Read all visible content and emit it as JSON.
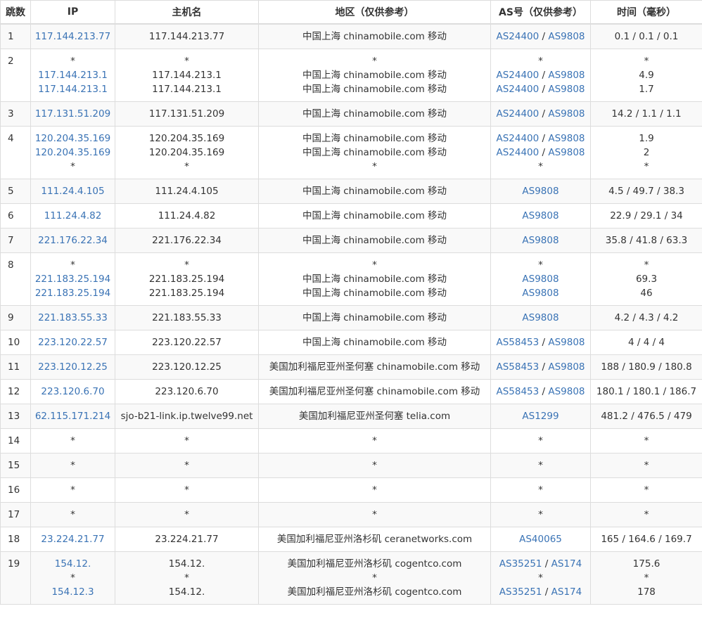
{
  "headers": [
    "跳数",
    "IP",
    "主机名",
    "地区（仅供参考）",
    "AS号（仅供参考）",
    "时间（毫秒）"
  ],
  "rows": [
    {
      "hop": "1",
      "ip": [
        "117.144.213.77"
      ],
      "host": [
        "117.144.213.77"
      ],
      "region": [
        "中国上海 chinamobile.com 移动"
      ],
      "as": [
        "AS24400 / AS9808"
      ],
      "time": [
        "0.1 / 0.1 / 0.1"
      ]
    },
    {
      "hop": "2",
      "ip": [
        "*",
        "117.144.213.1",
        "117.144.213.1"
      ],
      "host": [
        "*",
        "117.144.213.1",
        "117.144.213.1"
      ],
      "region": [
        "*",
        "中国上海 chinamobile.com 移动",
        "中国上海 chinamobile.com 移动"
      ],
      "as": [
        "*",
        "AS24400 / AS9808",
        "AS24400 / AS9808"
      ],
      "time": [
        "*",
        "4.9",
        "1.7"
      ]
    },
    {
      "hop": "3",
      "ip": [
        "117.131.51.209"
      ],
      "host": [
        "117.131.51.209"
      ],
      "region": [
        "中国上海 chinamobile.com 移动"
      ],
      "as": [
        "AS24400 / AS9808"
      ],
      "time": [
        "14.2 / 1.1 / 1.1"
      ]
    },
    {
      "hop": "4",
      "ip": [
        "120.204.35.169",
        "120.204.35.169",
        "*"
      ],
      "host": [
        "120.204.35.169",
        "120.204.35.169",
        "*"
      ],
      "region": [
        "中国上海 chinamobile.com 移动",
        "中国上海 chinamobile.com 移动",
        "*"
      ],
      "as": [
        "AS24400 / AS9808",
        "AS24400 / AS9808",
        "*"
      ],
      "time": [
        "1.9",
        "2",
        "*"
      ]
    },
    {
      "hop": "5",
      "ip": [
        "111.24.4.105"
      ],
      "host": [
        "111.24.4.105"
      ],
      "region": [
        "中国上海 chinamobile.com 移动"
      ],
      "as": [
        "AS9808"
      ],
      "time": [
        "4.5 / 49.7 / 38.3"
      ]
    },
    {
      "hop": "6",
      "ip": [
        "111.24.4.82"
      ],
      "host": [
        "111.24.4.82"
      ],
      "region": [
        "中国上海 chinamobile.com 移动"
      ],
      "as": [
        "AS9808"
      ],
      "time": [
        "22.9 / 29.1 / 34"
      ]
    },
    {
      "hop": "7",
      "ip": [
        "221.176.22.34"
      ],
      "host": [
        "221.176.22.34"
      ],
      "region": [
        "中国上海 chinamobile.com 移动"
      ],
      "as": [
        "AS9808"
      ],
      "time": [
        "35.8 / 41.8 / 63.3"
      ]
    },
    {
      "hop": "8",
      "ip": [
        "*",
        "221.183.25.194",
        "221.183.25.194"
      ],
      "host": [
        "*",
        "221.183.25.194",
        "221.183.25.194"
      ],
      "region": [
        "*",
        "中国上海 chinamobile.com 移动",
        "中国上海 chinamobile.com 移动"
      ],
      "as": [
        "*",
        "AS9808",
        "AS9808"
      ],
      "time": [
        "*",
        "69.3",
        "46"
      ]
    },
    {
      "hop": "9",
      "ip": [
        "221.183.55.33"
      ],
      "host": [
        "221.183.55.33"
      ],
      "region": [
        "中国上海 chinamobile.com 移动"
      ],
      "as": [
        "AS9808"
      ],
      "time": [
        "4.2 / 4.3 / 4.2"
      ]
    },
    {
      "hop": "10",
      "ip": [
        "223.120.22.57"
      ],
      "host": [
        "223.120.22.57"
      ],
      "region": [
        "中国上海 chinamobile.com 移动"
      ],
      "as": [
        "AS58453 / AS9808"
      ],
      "time": [
        "4 / 4 / 4"
      ]
    },
    {
      "hop": "11",
      "ip": [
        "223.120.12.25"
      ],
      "host": [
        "223.120.12.25"
      ],
      "region": [
        "美国加利福尼亚州圣何塞 chinamobile.com 移动"
      ],
      "as": [
        "AS58453 / AS9808"
      ],
      "time": [
        "188 / 180.9 / 180.8"
      ]
    },
    {
      "hop": "12",
      "ip": [
        "223.120.6.70"
      ],
      "host": [
        "223.120.6.70"
      ],
      "region": [
        "美国加利福尼亚州圣何塞 chinamobile.com 移动"
      ],
      "as": [
        "AS58453 / AS9808"
      ],
      "time": [
        "180.1 / 180.1 / 186.7"
      ]
    },
    {
      "hop": "13",
      "ip": [
        "62.115.171.214"
      ],
      "host": [
        "sjo-b21-link.ip.twelve99.net"
      ],
      "region": [
        "美国加利福尼亚州圣何塞 telia.com"
      ],
      "as": [
        "AS1299"
      ],
      "time": [
        "481.2 / 476.5 / 479"
      ]
    },
    {
      "hop": "14",
      "ip": [
        "*"
      ],
      "host": [
        "*"
      ],
      "region": [
        "*"
      ],
      "as": [
        "*"
      ],
      "time": [
        "*"
      ]
    },
    {
      "hop": "15",
      "ip": [
        "*"
      ],
      "host": [
        "*"
      ],
      "region": [
        "*"
      ],
      "as": [
        "*"
      ],
      "time": [
        "*"
      ]
    },
    {
      "hop": "16",
      "ip": [
        "*"
      ],
      "host": [
        "*"
      ],
      "region": [
        "*"
      ],
      "as": [
        "*"
      ],
      "time": [
        "*"
      ]
    },
    {
      "hop": "17",
      "ip": [
        "*"
      ],
      "host": [
        "*"
      ],
      "region": [
        "*"
      ],
      "as": [
        "*"
      ],
      "time": [
        "*"
      ]
    },
    {
      "hop": "18",
      "ip": [
        "23.224.21.77"
      ],
      "host": [
        "23.224.21.77"
      ],
      "region": [
        "美国加利福尼亚州洛杉矶 ceranetworks.com"
      ],
      "as": [
        "AS40065"
      ],
      "time": [
        "165 / 164.6 / 169.7"
      ]
    },
    {
      "hop": "19",
      "ip": [
        "154.12.",
        "*",
        "154.12.3"
      ],
      "host": [
        "154.12.",
        "*",
        "154.12."
      ],
      "region": [
        "美国加利福尼亚州洛杉矶 cogentco.com",
        "*",
        "美国加利福尼亚州洛杉矶 cogentco.com"
      ],
      "as": [
        "AS35251 / AS174",
        "*",
        "AS35251 / AS174"
      ],
      "time": [
        "175.6",
        "*",
        "178"
      ]
    }
  ]
}
